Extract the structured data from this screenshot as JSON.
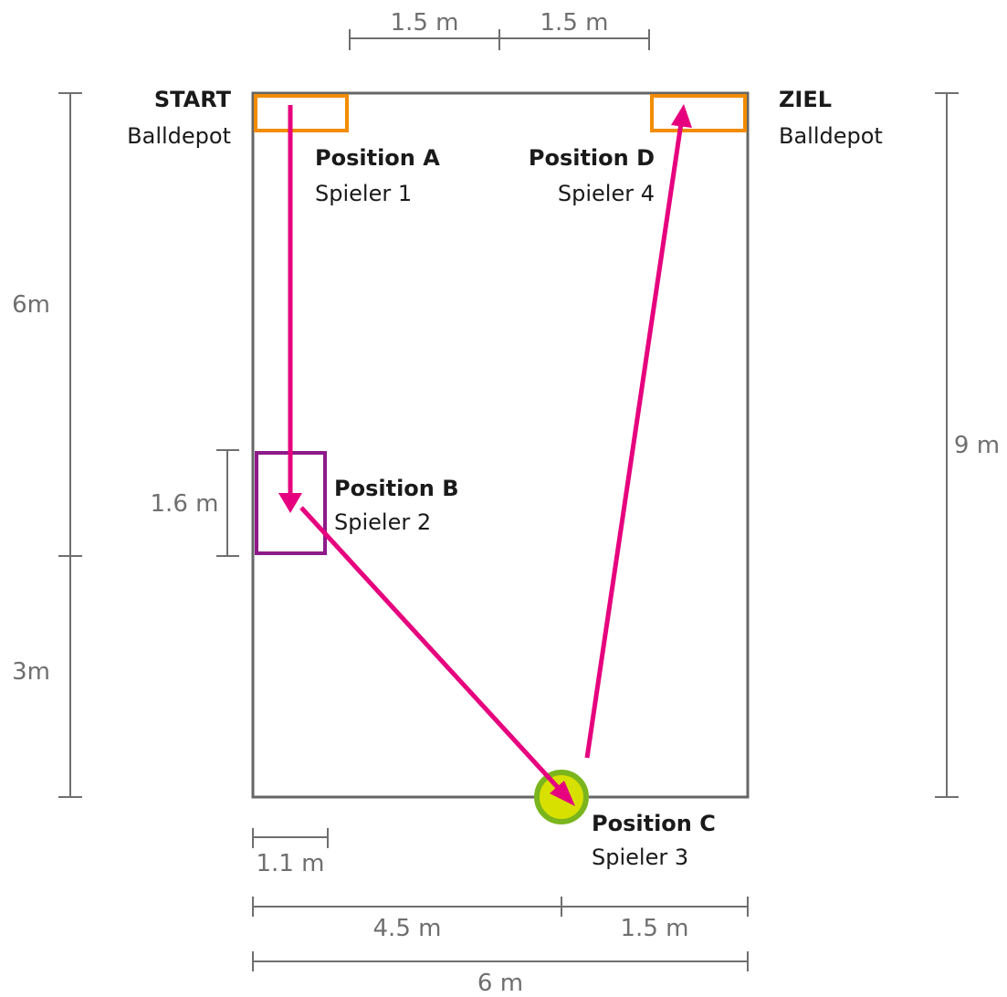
{
  "field": {
    "width": "6 m",
    "height": "9 m"
  },
  "dimensions": {
    "top_left": "1.5 m",
    "top_right": "1.5 m",
    "left_upper": "6m",
    "left_lower": "3m",
    "right": "9 m",
    "box_b_height": "1.6 m",
    "box_b_width": "1.1 m",
    "bottom_left": "4.5 m",
    "bottom_right": "1.5 m",
    "bottom_total": "6 m"
  },
  "labels": {
    "start_title": "START",
    "start_sub": "Balldepot",
    "ziel_title": "ZIEL",
    "ziel_sub": "Balldepot",
    "pos_a_title": "Position A",
    "pos_a_sub": "Spieler 1",
    "pos_b_title": "Position B",
    "pos_b_sub": "Spieler 2",
    "pos_c_title": "Position C",
    "pos_c_sub": "Spieler 3",
    "pos_d_title": "Position D",
    "pos_d_sub": "Spieler 4"
  },
  "colors": {
    "field_border": "#666666",
    "depot": "#f28c00",
    "box_b": "#8e1a8a",
    "arrow": "#e6007e",
    "pos_c_fill": "#d8e000",
    "pos_c_ring": "#7ab51d",
    "dimension": "#6f6f6f"
  }
}
